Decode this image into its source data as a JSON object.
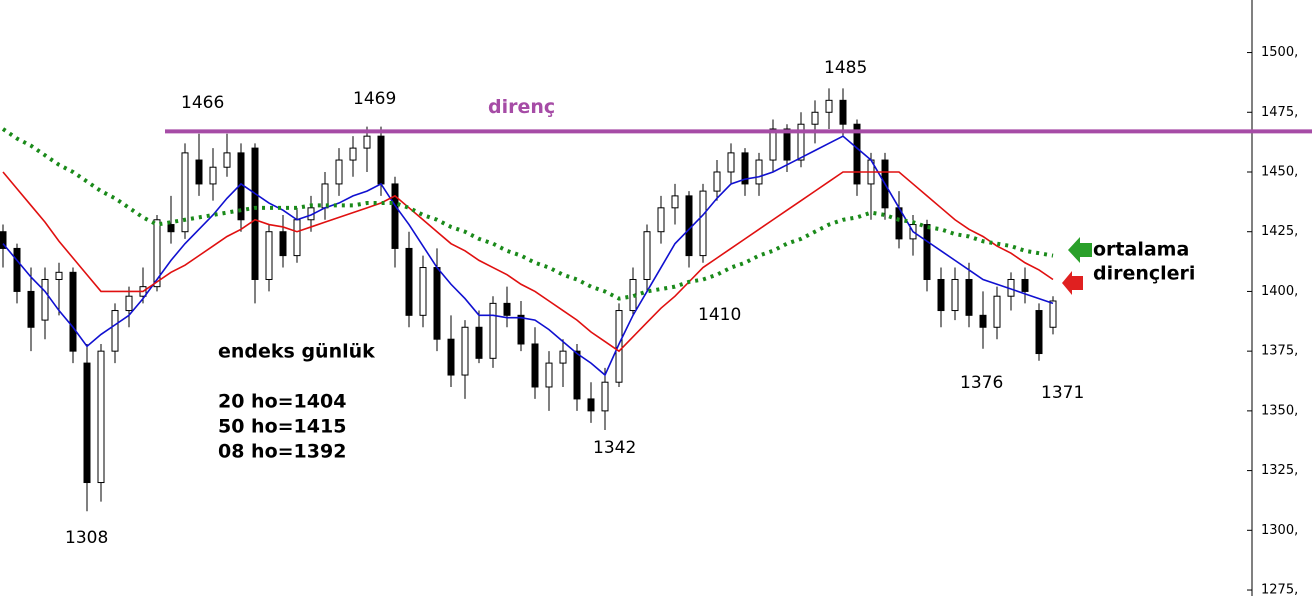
{
  "chart_data": {
    "type": "candlestick",
    "ylim": [
      1272.5,
      1522
    ],
    "yticks": [
      {
        "value": 1275,
        "label": "1275,"
      },
      {
        "value": 1300,
        "label": "1300,"
      },
      {
        "value": 1325,
        "label": "1325,"
      },
      {
        "value": 1350,
        "label": "1350,"
      },
      {
        "value": 1375,
        "label": "1375,"
      },
      {
        "value": 1400,
        "label": "1400,"
      },
      {
        "value": 1425,
        "label": "1425,"
      },
      {
        "value": 1450,
        "label": "1450,"
      },
      {
        "value": 1475,
        "label": "1475,"
      },
      {
        "value": 1500,
        "label": "1500,"
      }
    ],
    "ohlc": [
      [
        1425,
        1428,
        1410,
        1418
      ],
      [
        1418,
        1420,
        1395,
        1400
      ],
      [
        1400,
        1410,
        1375,
        1385
      ],
      [
        1388,
        1410,
        1380,
        1405
      ],
      [
        1405,
        1412,
        1390,
        1408
      ],
      [
        1408,
        1410,
        1370,
        1375
      ],
      [
        1370,
        1378,
        1308,
        1320
      ],
      [
        1320,
        1378,
        1312,
        1375
      ],
      [
        1375,
        1395,
        1370,
        1392
      ],
      [
        1392,
        1402,
        1385,
        1398
      ],
      [
        1398,
        1410,
        1395,
        1402
      ],
      [
        1402,
        1432,
        1400,
        1430
      ],
      [
        1428,
        1440,
        1420,
        1425
      ],
      [
        1425,
        1462,
        1422,
        1458
      ],
      [
        1455,
        1466,
        1440,
        1445
      ],
      [
        1445,
        1460,
        1438,
        1452
      ],
      [
        1452,
        1466,
        1448,
        1458
      ],
      [
        1458,
        1462,
        1425,
        1430
      ],
      [
        1460,
        1462,
        1395,
        1405
      ],
      [
        1405,
        1428,
        1400,
        1425
      ],
      [
        1425,
        1432,
        1410,
        1415
      ],
      [
        1415,
        1435,
        1412,
        1430
      ],
      [
        1430,
        1440,
        1425,
        1435
      ],
      [
        1435,
        1450,
        1430,
        1445
      ],
      [
        1445,
        1460,
        1440,
        1455
      ],
      [
        1455,
        1465,
        1448,
        1460
      ],
      [
        1460,
        1469,
        1450,
        1465
      ],
      [
        1465,
        1469,
        1440,
        1445
      ],
      [
        1445,
        1448,
        1410,
        1418
      ],
      [
        1418,
        1425,
        1385,
        1390
      ],
      [
        1390,
        1415,
        1385,
        1410
      ],
      [
        1410,
        1418,
        1375,
        1380
      ],
      [
        1380,
        1390,
        1360,
        1365
      ],
      [
        1365,
        1388,
        1355,
        1385
      ],
      [
        1385,
        1392,
        1370,
        1372
      ],
      [
        1372,
        1398,
        1368,
        1395
      ],
      [
        1395,
        1402,
        1385,
        1390
      ],
      [
        1390,
        1396,
        1375,
        1378
      ],
      [
        1378,
        1385,
        1355,
        1360
      ],
      [
        1360,
        1375,
        1350,
        1370
      ],
      [
        1370,
        1380,
        1360,
        1375
      ],
      [
        1375,
        1378,
        1350,
        1355
      ],
      [
        1355,
        1362,
        1345,
        1350
      ],
      [
        1350,
        1368,
        1342,
        1362
      ],
      [
        1362,
        1395,
        1360,
        1392
      ],
      [
        1392,
        1410,
        1390,
        1405
      ],
      [
        1405,
        1428,
        1400,
        1425
      ],
      [
        1425,
        1440,
        1420,
        1435
      ],
      [
        1435,
        1445,
        1428,
        1440
      ],
      [
        1440,
        1442,
        1410,
        1415
      ],
      [
        1415,
        1445,
        1412,
        1442
      ],
      [
        1442,
        1455,
        1438,
        1450
      ],
      [
        1450,
        1462,
        1445,
        1458
      ],
      [
        1458,
        1460,
        1440,
        1445
      ],
      [
        1445,
        1458,
        1440,
        1455
      ],
      [
        1455,
        1472,
        1450,
        1468
      ],
      [
        1468,
        1470,
        1450,
        1455
      ],
      [
        1455,
        1475,
        1452,
        1470
      ],
      [
        1470,
        1480,
        1462,
        1475
      ],
      [
        1475,
        1485,
        1468,
        1480
      ],
      [
        1480,
        1485,
        1465,
        1470
      ],
      [
        1470,
        1472,
        1440,
        1445
      ],
      [
        1445,
        1458,
        1430,
        1455
      ],
      [
        1455,
        1458,
        1430,
        1435
      ],
      [
        1435,
        1442,
        1418,
        1422
      ],
      [
        1422,
        1432,
        1415,
        1428
      ],
      [
        1428,
        1430,
        1400,
        1405
      ],
      [
        1405,
        1410,
        1385,
        1392
      ],
      [
        1392,
        1410,
        1388,
        1405
      ],
      [
        1405,
        1412,
        1385,
        1390
      ],
      [
        1390,
        1400,
        1376,
        1385
      ],
      [
        1385,
        1402,
        1380,
        1398
      ],
      [
        1398,
        1408,
        1392,
        1405
      ],
      [
        1405,
        1410,
        1395,
        1400
      ],
      [
        1392,
        1395,
        1371,
        1374
      ],
      [
        1385,
        1398,
        1382,
        1396
      ]
    ],
    "series": [
      {
        "color": "#1010d0",
        "style": "solid",
        "values": [
          1420,
          1413,
          1406,
          1400,
          1392,
          1385,
          1377,
          1382,
          1386,
          1390,
          1397,
          1405,
          1413,
          1420,
          1426,
          1432,
          1439,
          1445,
          1441,
          1437,
          1434,
          1430,
          1432,
          1435,
          1437,
          1440,
          1442,
          1445,
          1436,
          1428,
          1419,
          1410,
          1403,
          1397,
          1390,
          1390,
          1389,
          1389,
          1388,
          1384,
          1379,
          1374,
          1370,
          1365,
          1378,
          1390,
          1400,
          1410,
          1420,
          1426,
          1432,
          1439,
          1445,
          1447,
          1448,
          1450,
          1453,
          1456,
          1459,
          1462,
          1465,
          1460,
          1455,
          1445,
          1435,
          1425,
          1421,
          1417,
          1413,
          1409,
          1405,
          1403,
          1401,
          1399,
          1397,
          1395
        ]
      },
      {
        "color": "#e01010",
        "style": "solid",
        "values": [
          1450,
          1443,
          1436,
          1429,
          1421,
          1414,
          1407,
          1400,
          1400,
          1400,
          1400,
          1404,
          1408,
          1411,
          1415,
          1419,
          1423,
          1426,
          1430,
          1428,
          1427,
          1425,
          1427,
          1429,
          1431,
          1433,
          1435,
          1437,
          1440,
          1435,
          1430,
          1425,
          1420,
          1417,
          1413,
          1410,
          1407,
          1403,
          1400,
          1396,
          1392,
          1388,
          1383,
          1379,
          1375,
          1381,
          1387,
          1393,
          1398,
          1404,
          1410,
          1414,
          1418,
          1422,
          1426,
          1430,
          1434,
          1438,
          1442,
          1446,
          1450,
          1450,
          1450,
          1450,
          1450,
          1445,
          1440,
          1435,
          1430,
          1426,
          1423,
          1419,
          1416,
          1412,
          1409,
          1405
        ]
      },
      {
        "color": "#1a8a1a",
        "style": "dotted",
        "values": [
          1468,
          1464,
          1461,
          1457,
          1453,
          1450,
          1446,
          1442,
          1439,
          1435,
          1431,
          1428,
          1429,
          1430,
          1431,
          1432,
          1433,
          1434,
          1435,
          1435,
          1435,
          1435,
          1436,
          1436,
          1436,
          1436,
          1437,
          1437,
          1437,
          1435,
          1432,
          1430,
          1427,
          1425,
          1422,
          1420,
          1417,
          1415,
          1412,
          1410,
          1407,
          1405,
          1402,
          1400,
          1397,
          1398,
          1400,
          1401,
          1402,
          1404,
          1405,
          1407,
          1410,
          1412,
          1415,
          1417,
          1420,
          1422,
          1425,
          1428,
          1430,
          1431,
          1433,
          1432,
          1430,
          1429,
          1427,
          1426,
          1424,
          1423,
          1421,
          1420,
          1419,
          1417,
          1416,
          1415
        ]
      }
    ],
    "resistance": {
      "value": 1467,
      "label": "direnç",
      "color": "#a64ca6"
    },
    "annotations": [
      "1466",
      "1469",
      "1485",
      "1410",
      "1308",
      "1342",
      "1376",
      "1371"
    ],
    "info": [
      "endeks günlük",
      "20 ho=1404",
      "50 ho=1415",
      "08 ho=1392"
    ],
    "note": [
      "ortalama",
      "dirençleri"
    ]
  }
}
